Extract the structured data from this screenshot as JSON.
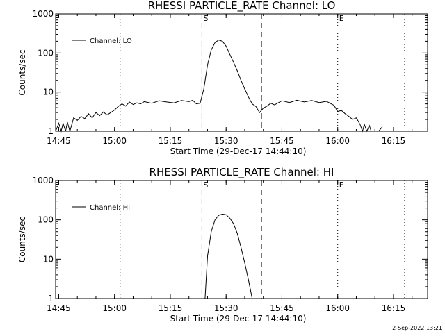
{
  "footer": {
    "date": "2-Sep-2022 13:21"
  },
  "chart_data": [
    {
      "type": "line",
      "title": "RHESSI PARTICLE_RATE Channel: LO",
      "xlabel": "Start Time (29-Dec-17 14:44:10)",
      "ylabel": "Counts/sec",
      "yscale": "log",
      "ylim": [
        1,
        1000
      ],
      "xlim": [
        "14:44:10",
        "16:24:10"
      ],
      "grid": false,
      "legend_position": "top-left",
      "x_ticks": [
        "14:45",
        "15:00",
        "15:15",
        "15:30",
        "15:45",
        "16:00",
        "16:15"
      ],
      "y_ticks": [
        "1",
        "10",
        "100",
        "1000"
      ],
      "markers": [
        {
          "label": "S",
          "x": "15:23:30",
          "style": "dashed"
        },
        {
          "label": "",
          "x": "15:39:30",
          "style": "dashed"
        },
        {
          "label": "E",
          "x": "16:00:00",
          "style": "dotted"
        }
      ],
      "reference_lines": [
        {
          "x": "15:01:30",
          "style": "dotted"
        },
        {
          "x": "16:18:00",
          "style": "dotted"
        }
      ],
      "series": [
        {
          "name": "Channel: LO",
          "x": [
            "14:44:10",
            "14:45:00",
            "14:45:40",
            "14:46:10",
            "14:46:50",
            "14:47:20",
            "14:48:00",
            "14:49:00",
            "14:50:00",
            "14:51:00",
            "14:52:00",
            "14:53:00",
            "14:54:00",
            "14:55:00",
            "14:56:00",
            "14:57:00",
            "14:58:00",
            "14:59:00",
            "15:00:00",
            "15:01:00",
            "15:02:00",
            "15:03:00",
            "15:04:00",
            "15:05:00",
            "15:06:00",
            "15:07:00",
            "15:08:00",
            "15:10:00",
            "15:12:00",
            "15:14:00",
            "15:16:00",
            "15:18:00",
            "15:20:00",
            "15:21:00",
            "15:22:00",
            "15:23:00",
            "15:24:00",
            "15:25:00",
            "15:26:00",
            "15:27:00",
            "15:28:00",
            "15:29:00",
            "15:30:00",
            "15:31:00",
            "15:32:00",
            "15:33:00",
            "15:34:00",
            "15:35:00",
            "15:36:00",
            "15:37:00",
            "15:38:00",
            "15:39:00",
            "15:40:00",
            "15:41:00",
            "15:42:00",
            "15:43:00",
            "15:45:00",
            "15:47:00",
            "15:49:00",
            "15:51:00",
            "15:53:00",
            "15:55:00",
            "15:57:00",
            "15:59:00",
            "16:00:00",
            "16:01:00",
            "16:02:00",
            "16:03:00",
            "16:04:00",
            "16:05:00",
            "16:06:00",
            "16:06:40",
            "16:07:10",
            "16:07:50",
            "16:08:30",
            "16:09:00",
            "16:11:00",
            "16:12:00"
          ],
          "y": [
            1.0,
            1.6,
            1.0,
            1.6,
            1.0,
            1.7,
            1.0,
            2.2,
            1.9,
            2.4,
            2.1,
            2.8,
            2.2,
            3.0,
            2.5,
            3.1,
            2.6,
            3.0,
            3.5,
            4.3,
            5.0,
            4.4,
            5.6,
            4.8,
            5.3,
            5.0,
            5.7,
            5.2,
            6.0,
            5.6,
            5.3,
            6.1,
            5.7,
            6.2,
            5.0,
            5.2,
            12,
            50,
            120,
            185,
            215,
            200,
            150,
            92,
            58,
            35,
            20,
            12,
            7.5,
            5.0,
            4.3,
            3.0,
            3.9,
            4.4,
            5.2,
            4.7,
            6.0,
            5.4,
            6.2,
            5.6,
            6.1,
            5.4,
            5.8,
            4.6,
            3.2,
            3.4,
            2.8,
            2.4,
            2.0,
            2.2,
            1.5,
            1.0,
            1.5,
            1.0,
            1.4,
            1.0,
            1.0,
            1.3
          ]
        }
      ]
    },
    {
      "type": "line",
      "title": "RHESSI PARTICLE_RATE Channel: HI",
      "xlabel": "Start Time (29-Dec-17 14:44:10)",
      "ylabel": "Counts/sec",
      "yscale": "log",
      "ylim": [
        1,
        1000
      ],
      "xlim": [
        "14:44:10",
        "16:24:10"
      ],
      "grid": false,
      "legend_position": "top-left",
      "x_ticks": [
        "14:45",
        "15:00",
        "15:15",
        "15:30",
        "15:45",
        "16:00",
        "16:15"
      ],
      "y_ticks": [
        "1",
        "10",
        "100",
        "1000"
      ],
      "markers": [
        {
          "label": "S",
          "x": "15:23:30",
          "style": "dashed"
        },
        {
          "label": "",
          "x": "15:39:30",
          "style": "dashed"
        },
        {
          "label": "E",
          "x": "16:00:00",
          "style": "dotted"
        }
      ],
      "reference_lines": [
        {
          "x": "15:01:30",
          "style": "dotted"
        },
        {
          "x": "16:18:00",
          "style": "dotted"
        }
      ],
      "series": [
        {
          "name": "Channel: HI",
          "x": [
            "15:24:20",
            "15:25:00",
            "15:26:00",
            "15:27:00",
            "15:28:00",
            "15:29:00",
            "15:30:00",
            "15:31:00",
            "15:32:00",
            "15:33:00",
            "15:34:00",
            "15:35:00",
            "15:36:00",
            "15:37:00"
          ],
          "y": [
            1.0,
            12,
            50,
            100,
            130,
            140,
            135,
            110,
            80,
            45,
            20,
            8,
            3.0,
            1.0
          ]
        }
      ]
    }
  ]
}
